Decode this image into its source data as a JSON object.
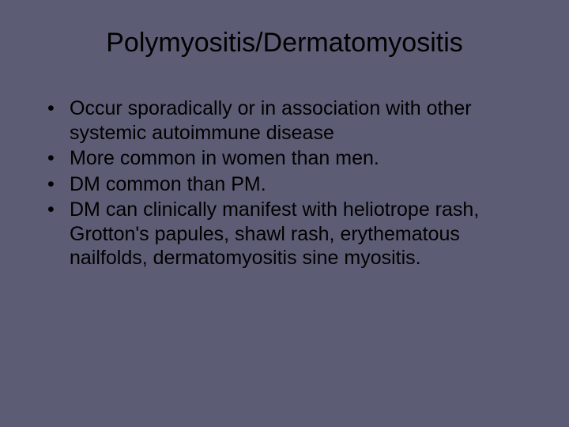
{
  "slide": {
    "title": "Polymyositis/Dermatomyositis",
    "bullets": [
      "Occur sporadically or in association with other systemic autoimmune disease",
      "More common in women than men.",
      "DM common than PM.",
      "DM can clinically manifest with heliotrope rash, Grotton's papules, shawl rash, erythematous nailfolds, dermatomyositis sine myositis."
    ],
    "background_color": "#5c5d74",
    "title_color": "#000000",
    "text_color": "#000000",
    "title_fontsize": 34,
    "body_fontsize": 25,
    "font_family": "Arial"
  }
}
